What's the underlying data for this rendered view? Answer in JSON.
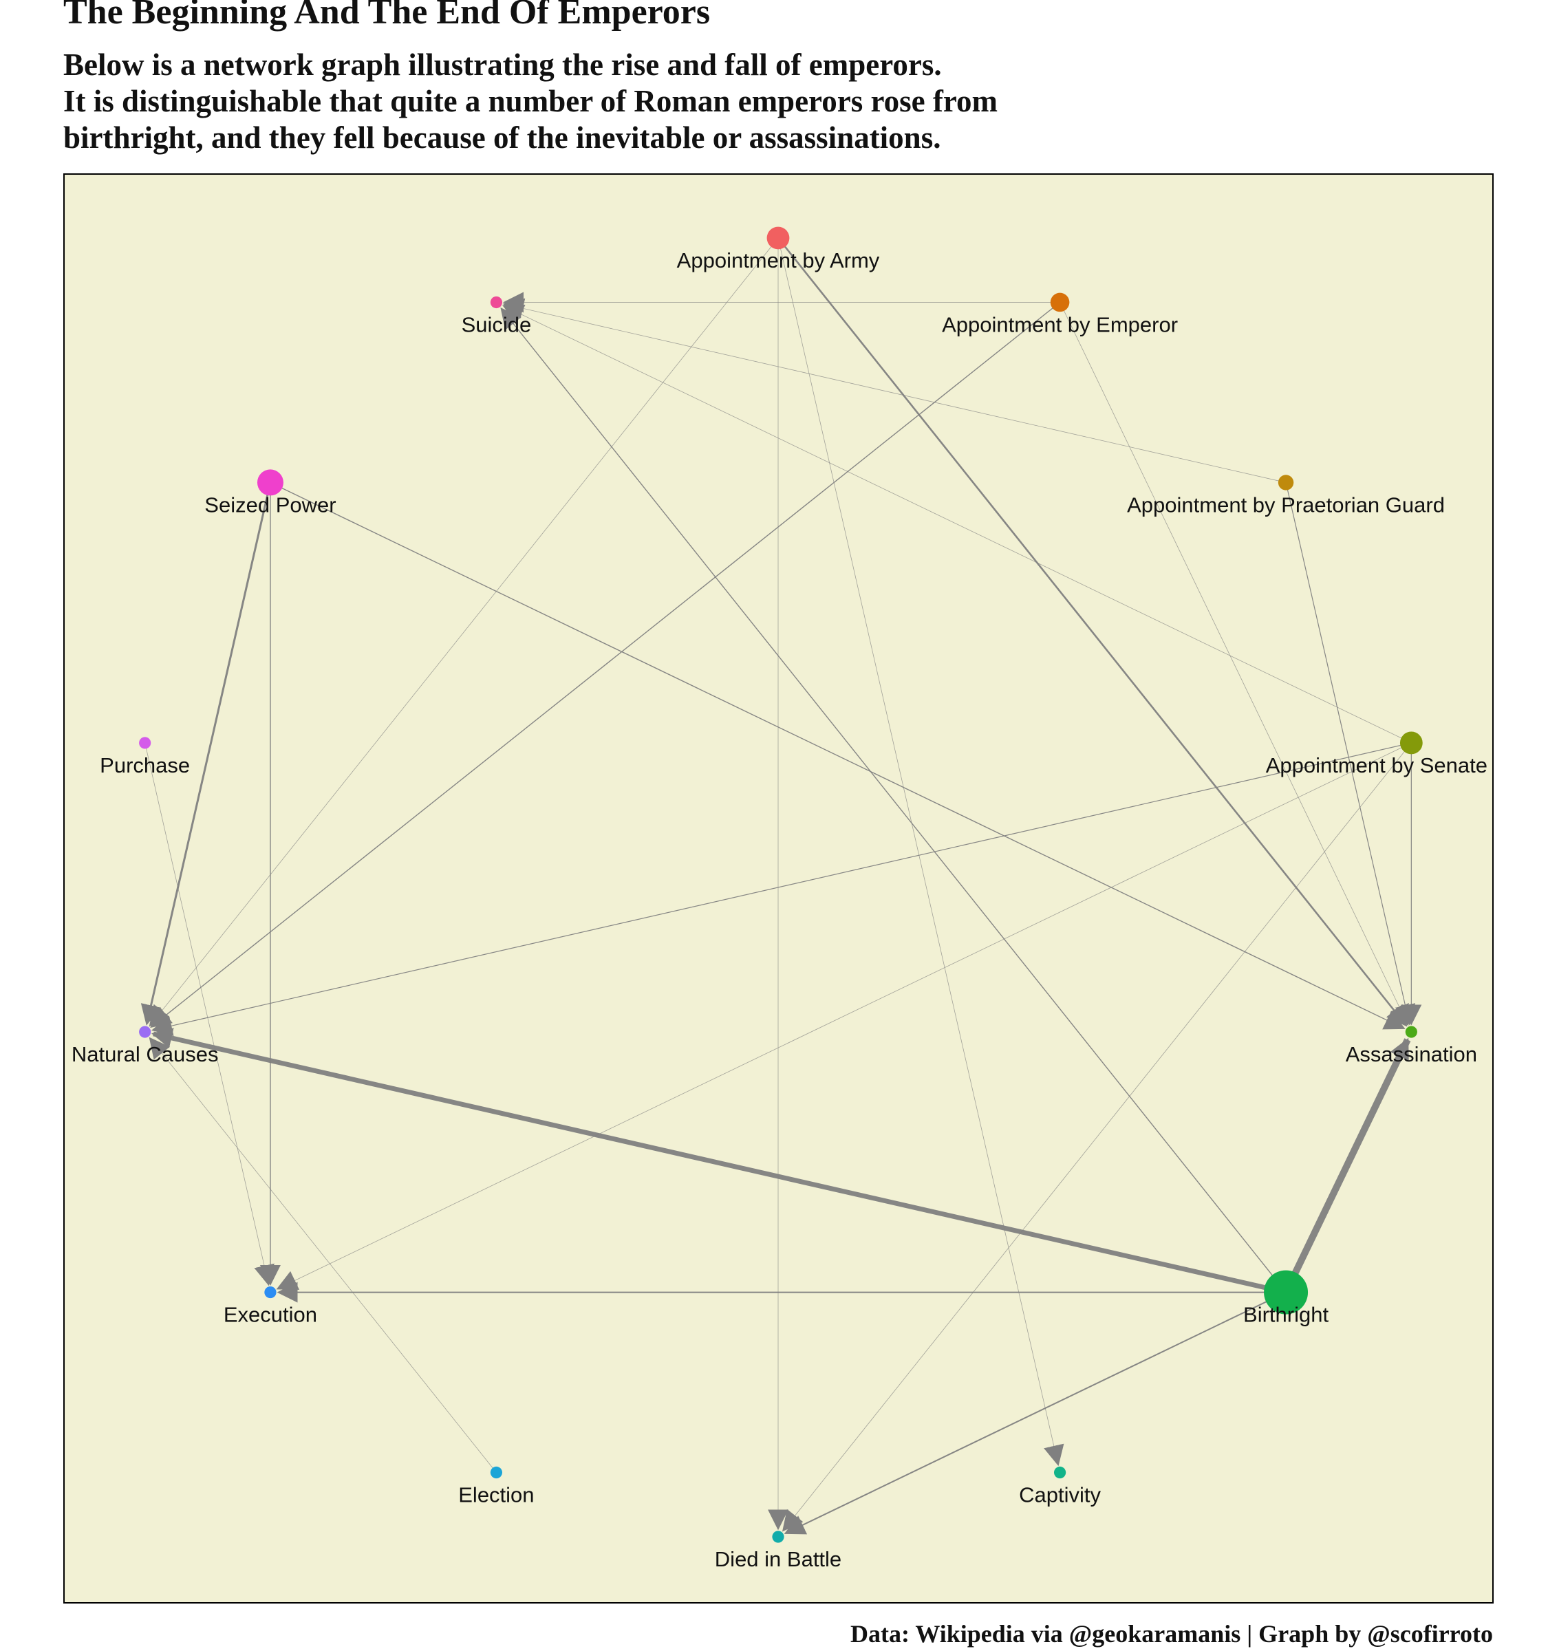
{
  "title": "The Beginning And The End Of Emperors",
  "subtitle": [
    "Below is a network graph illustrating the rise and fall of emperors.",
    "It is distinguishable that quite a number of Roman emperors rose from",
    "birthright, and they fell because of the inevitable or assassinations."
  ],
  "caption": "Data: Wikipedia via @geokaramanis | Graph by @scofirroto",
  "colors": {
    "panel_background": "#F2F1D4",
    "panel_border": "#000000",
    "edge": "#808080"
  },
  "graph": {
    "nodes": [
      {
        "id": "army",
        "label": "Appointment by Army",
        "color": "#F16060",
        "size": 4
      },
      {
        "id": "emperor",
        "label": "Appointment by Emperor",
        "color": "#D7700A",
        "size": 3
      },
      {
        "id": "praetorian",
        "label": "Appointment by Praetorian Guard",
        "color": "#BF8A0C",
        "size": 2
      },
      {
        "id": "senate",
        "label": "Appointment by Senate",
        "color": "#849A0A",
        "size": 4
      },
      {
        "id": "assassination",
        "label": "Assassination",
        "color": "#4CAA16",
        "size": 1
      },
      {
        "id": "birthright",
        "label": "Birthright",
        "color": "#13B04C",
        "size": 10
      },
      {
        "id": "captivity",
        "label": "Captivity",
        "color": "#12B389",
        "size": 1
      },
      {
        "id": "battle",
        "label": "Died in Battle",
        "color": "#12ACAA",
        "size": 1
      },
      {
        "id": "election",
        "label": "Election",
        "color": "#1CA5D7",
        "size": 1
      },
      {
        "id": "execution",
        "label": "Execution",
        "color": "#2C8DF3",
        "size": 1
      },
      {
        "id": "natural",
        "label": "Natural Causes",
        "color": "#9A6CF3",
        "size": 1
      },
      {
        "id": "purchase",
        "label": "Purchase",
        "color": "#D45BEA",
        "size": 1
      },
      {
        "id": "seized",
        "label": "Seized Power",
        "color": "#EF40CC",
        "size": 5
      },
      {
        "id": "suicide",
        "label": "Suicide",
        "color": "#EE4A96",
        "size": 1
      }
    ],
    "edges": [
      {
        "from": "birthright",
        "to": "assassination",
        "weight": 10
      },
      {
        "from": "birthright",
        "to": "natural",
        "weight": 7
      },
      {
        "from": "birthright",
        "to": "execution",
        "weight": 2
      },
      {
        "from": "birthright",
        "to": "battle",
        "weight": 2
      },
      {
        "from": "birthright",
        "to": "suicide",
        "weight": 1.4
      },
      {
        "from": "seized",
        "to": "natural",
        "weight": 3
      },
      {
        "from": "seized",
        "to": "execution",
        "weight": 1.4
      },
      {
        "from": "seized",
        "to": "assassination",
        "weight": 1.4
      },
      {
        "from": "army",
        "to": "assassination",
        "weight": 2.6
      },
      {
        "from": "army",
        "to": "natural",
        "weight": 0.8
      },
      {
        "from": "army",
        "to": "battle",
        "weight": 0.8
      },
      {
        "from": "army",
        "to": "captivity",
        "weight": 0.8
      },
      {
        "from": "emperor",
        "to": "suicide",
        "weight": 0.9
      },
      {
        "from": "emperor",
        "to": "natural",
        "weight": 1.4
      },
      {
        "from": "emperor",
        "to": "assassination",
        "weight": 0.8
      },
      {
        "from": "praetorian",
        "to": "suicide",
        "weight": 0.8
      },
      {
        "from": "praetorian",
        "to": "assassination",
        "weight": 1.2
      },
      {
        "from": "senate",
        "to": "natural",
        "weight": 1.2
      },
      {
        "from": "senate",
        "to": "assassination",
        "weight": 1.2
      },
      {
        "from": "senate",
        "to": "suicide",
        "weight": 0.8
      },
      {
        "from": "senate",
        "to": "execution",
        "weight": 0.8
      },
      {
        "from": "senate",
        "to": "battle",
        "weight": 0.8
      },
      {
        "from": "purchase",
        "to": "execution",
        "weight": 0.8
      },
      {
        "from": "election",
        "to": "natural",
        "weight": 0.8
      }
    ]
  }
}
